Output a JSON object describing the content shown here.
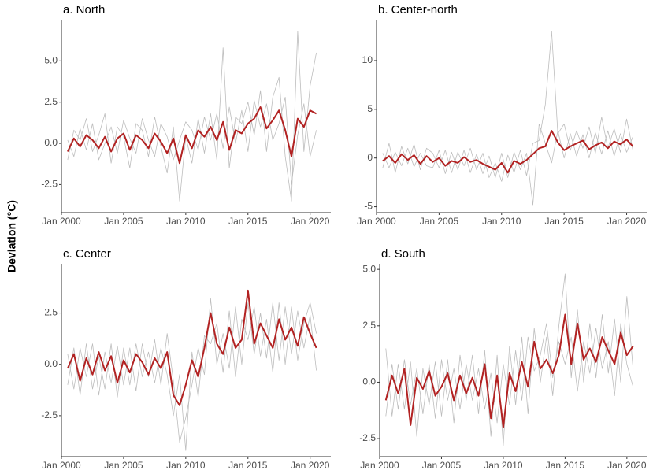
{
  "y_label": "Deviation (°C)",
  "chart_data": [
    {
      "type": "line",
      "title": "a. North",
      "x": [
        "2000-07",
        "2001-01",
        "2001-07",
        "2002-01",
        "2002-07",
        "2003-01",
        "2003-07",
        "2004-01",
        "2004-07",
        "2005-01",
        "2005-07",
        "2006-01",
        "2006-07",
        "2007-01",
        "2007-07",
        "2008-01",
        "2008-07",
        "2009-01",
        "2009-07",
        "2010-01",
        "2010-07",
        "2011-01",
        "2011-07",
        "2012-01",
        "2012-07",
        "2013-01",
        "2013-07",
        "2014-01",
        "2014-07",
        "2015-01",
        "2015-07",
        "2016-01",
        "2016-07",
        "2017-01",
        "2017-07",
        "2018-01",
        "2018-07",
        "2019-01",
        "2019-07",
        "2020-01",
        "2020-07"
      ],
      "series": [
        {
          "color": "#bdbdbd",
          "values": [
            -1.0,
            0.8,
            0.2,
            1.5,
            -0.5,
            0.5,
            1.8,
            -1.2,
            1.0,
            0.4,
            -1.5,
            1.2,
            0.8,
            -0.8,
            1.6,
            -0.2,
            -1.8,
            1.0,
            -3.5,
            0.4,
            -1.2,
            1.5,
            -0.6,
            1.8,
            -1.0,
            5.8,
            -1.5,
            1.6,
            1.2,
            2.5,
            0.5,
            3.2,
            -0.5,
            2.8,
            4.0,
            -0.8,
            -3.5,
            6.8,
            -0.5,
            3.5,
            5.5
          ]
        },
        {
          "color": "#bdbdbd",
          "values": [
            0.2,
            -0.8,
            0.9,
            -0.4,
            1.2,
            -1.0,
            0.0,
            1.0,
            -0.6,
            1.4,
            0.3,
            -0.6,
            1.5,
            0.2,
            -0.8,
            1.2,
            0.4,
            -1.0,
            0.2,
            1.3,
            0.8,
            -0.4,
            1.6,
            0.2,
            1.8,
            -0.3,
            2.2,
            0.0,
            2.0,
            -0.5,
            2.6,
            1.0,
            2.4,
            0.2,
            1.2,
            2.8,
            -2.5,
            0.5,
            2.4,
            -0.8,
            0.8
          ]
        },
        {
          "color": "#b22222",
          "values": [
            -0.5,
            0.3,
            -0.2,
            0.5,
            0.2,
            -0.3,
            0.4,
            -0.5,
            0.3,
            0.6,
            -0.4,
            0.5,
            0.2,
            -0.3,
            0.6,
            0.1,
            -0.6,
            0.3,
            -1.2,
            0.5,
            -0.3,
            0.8,
            0.4,
            1.0,
            0.2,
            1.3,
            -0.4,
            0.8,
            0.6,
            1.2,
            1.5,
            2.2,
            0.9,
            1.4,
            2.0,
            0.8,
            -0.8,
            1.5,
            1.0,
            2.0,
            1.8
          ]
        }
      ],
      "xlim": [
        "2000-01",
        "2021-09"
      ],
      "xticks": [
        {
          "value": "2000-01",
          "label": "Jan 2000"
        },
        {
          "value": "2005-01",
          "label": "Jan 2005"
        },
        {
          "value": "2010-01",
          "label": "Jan 2010"
        },
        {
          "value": "2015-01",
          "label": "Jan 2015"
        },
        {
          "value": "2020-01",
          "label": "Jan 2020"
        }
      ],
      "ylim": [
        -4.2,
        7.5
      ],
      "yticks": [
        -2.5,
        {
          "value": 0,
          "label": "0.0"
        },
        2.5,
        {
          "value": 5,
          "label": "5.0"
        }
      ]
    },
    {
      "type": "line",
      "title": "b. Center-north",
      "x": [
        "2000-07",
        "2001-01",
        "2001-07",
        "2002-01",
        "2002-07",
        "2003-01",
        "2003-07",
        "2004-01",
        "2004-07",
        "2005-01",
        "2005-07",
        "2006-01",
        "2006-07",
        "2007-01",
        "2007-07",
        "2008-01",
        "2008-07",
        "2009-01",
        "2009-07",
        "2010-01",
        "2010-07",
        "2011-01",
        "2011-07",
        "2012-01",
        "2012-07",
        "2013-01",
        "2013-07",
        "2014-01",
        "2014-07",
        "2015-01",
        "2015-07",
        "2016-01",
        "2016-07",
        "2017-01",
        "2017-07",
        "2018-01",
        "2018-07",
        "2019-01",
        "2019-07",
        "2020-01",
        "2020-07"
      ],
      "series": [
        {
          "color": "#bdbdbd",
          "values": [
            -1.0,
            1.5,
            -1.5,
            1.2,
            -0.6,
            1.4,
            -1.2,
            1.0,
            0.5,
            -1.0,
            0.8,
            -1.5,
            0.6,
            -0.8,
            1.0,
            -1.2,
            0.5,
            -2.0,
            -0.5,
            -2.4,
            0.3,
            -1.5,
            0.8,
            -1.8,
            1.5,
            1.8,
            5.5,
            13.0,
            2.5,
            3.5,
            0.8,
            2.8,
            1.0,
            3.2,
            0.5,
            4.2,
            1.0,
            3.0,
            0.6,
            4.0,
            0.8
          ]
        },
        {
          "color": "#bdbdbd",
          "values": [
            0.5,
            -1.0,
            0.6,
            -0.8,
            1.0,
            -0.9,
            0.5,
            -0.8,
            -1.0,
            0.8,
            -1.6,
            0.6,
            -1.2,
            0.8,
            -1.5,
            0.4,
            -1.6,
            0.2,
            -2.0,
            0.5,
            -2.0,
            0.6,
            -1.2,
            0.5,
            -4.8,
            3.5,
            1.5,
            -0.5,
            2.8,
            0.0,
            2.5,
            0.2,
            2.4,
            0.0,
            2.6,
            0.4,
            2.8,
            0.2,
            2.5,
            0.6,
            2.2
          ]
        },
        {
          "color": "#b22222",
          "values": [
            -0.3,
            0.2,
            -0.5,
            0.4,
            -0.2,
            0.3,
            -0.6,
            0.2,
            -0.4,
            0.0,
            -0.8,
            -0.3,
            -0.5,
            0.1,
            -0.4,
            -0.2,
            -0.6,
            -0.9,
            -1.2,
            -0.5,
            -1.5,
            -0.3,
            -0.6,
            -0.2,
            0.4,
            1.0,
            1.2,
            2.8,
            1.6,
            0.8,
            1.2,
            1.5,
            1.8,
            0.9,
            1.3,
            1.6,
            1.0,
            1.7,
            1.4,
            1.9,
            1.2
          ]
        }
      ],
      "xlim": [
        "2000-01",
        "2021-09"
      ],
      "xticks": [
        {
          "value": "2000-01",
          "label": "Jan 2000"
        },
        {
          "value": "2005-01",
          "label": "Jan 2005"
        },
        {
          "value": "2010-01",
          "label": "Jan 2010"
        },
        {
          "value": "2015-01",
          "label": "Jan 2015"
        },
        {
          "value": "2020-01",
          "label": "Jan 2020"
        }
      ],
      "ylim": [
        -5.6,
        14.2
      ],
      "yticks": [
        -5,
        0,
        5,
        10
      ]
    },
    {
      "type": "line",
      "title": "c. Center",
      "x": [
        "2000-07",
        "2001-01",
        "2001-07",
        "2002-01",
        "2002-07",
        "2003-01",
        "2003-07",
        "2004-01",
        "2004-07",
        "2005-01",
        "2005-07",
        "2006-01",
        "2006-07",
        "2007-01",
        "2007-07",
        "2008-01",
        "2008-07",
        "2009-01",
        "2009-07",
        "2010-01",
        "2010-07",
        "2011-01",
        "2011-07",
        "2012-01",
        "2012-07",
        "2013-01",
        "2013-07",
        "2014-01",
        "2014-07",
        "2015-01",
        "2015-07",
        "2016-01",
        "2016-07",
        "2017-01",
        "2017-07",
        "2018-01",
        "2018-07",
        "2019-01",
        "2019-07",
        "2020-01",
        "2020-07"
      ],
      "series": [
        {
          "color": "#bdbdbd",
          "values": [
            0.5,
            -1.2,
            0.8,
            -0.6,
            1.0,
            -1.5,
            0.6,
            -0.9,
            0.9,
            -1.0,
            0.8,
            -1.3,
            1.0,
            -0.6,
            1.2,
            -1.0,
            1.5,
            -0.8,
            -3.8,
            -2.6,
            -1.0,
            0.8,
            -0.5,
            3.2,
            0.0,
            1.5,
            -0.2,
            2.8,
            0.0,
            3.0,
            0.5,
            2.5,
            0.3,
            3.0,
            0.2,
            2.8,
            0.5,
            2.6,
            0.8,
            2.4,
            -0.3
          ]
        },
        {
          "color": "#bdbdbd",
          "values": [
            -1.0,
            0.8,
            -1.5,
            1.0,
            -1.2,
            0.4,
            -1.2,
            1.0,
            -1.6,
            0.8,
            -1.0,
            1.0,
            -0.6,
            0.6,
            -0.9,
            0.8,
            -0.5,
            -2.5,
            -0.5,
            -4.2,
            0.6,
            -1.6,
            1.4,
            1.0,
            2.0,
            -0.4,
            2.6,
            -0.6,
            2.2,
            1.2,
            2.8,
            0.4,
            2.2,
            -0.4,
            3.0,
            0.0,
            2.8,
            0.2,
            2.0,
            3.0,
            1.5
          ]
        },
        {
          "color": "#b22222",
          "values": [
            -0.2,
            0.5,
            -0.8,
            0.3,
            -0.5,
            0.6,
            -0.3,
            0.4,
            -0.9,
            0.2,
            -0.4,
            0.5,
            0.1,
            -0.5,
            0.3,
            -0.2,
            0.6,
            -1.5,
            -2.0,
            -1.0,
            0.2,
            -0.6,
            0.8,
            2.5,
            1.0,
            0.5,
            1.8,
            0.8,
            1.2,
            3.6,
            1.0,
            2.0,
            1.4,
            0.8,
            2.2,
            1.2,
            1.8,
            0.9,
            2.3,
            1.5,
            0.8
          ]
        }
      ],
      "xlim": [
        "2000-01",
        "2021-09"
      ],
      "xticks": [
        {
          "value": "2000-01",
          "label": "Jan 2000"
        },
        {
          "value": "2005-01",
          "label": "Jan 2005"
        },
        {
          "value": "2010-01",
          "label": "Jan 2010"
        },
        {
          "value": "2015-01",
          "label": "Jan 2015"
        },
        {
          "value": "2020-01",
          "label": "Jan 2020"
        }
      ],
      "ylim": [
        -4.5,
        4.9
      ],
      "yticks": [
        -2.5,
        {
          "value": 0,
          "label": "0.0"
        },
        2.5
      ]
    },
    {
      "type": "line",
      "title": "d. South",
      "x": [
        "2000-07",
        "2001-01",
        "2001-07",
        "2002-01",
        "2002-07",
        "2003-01",
        "2003-07",
        "2004-01",
        "2004-07",
        "2005-01",
        "2005-07",
        "2006-01",
        "2006-07",
        "2007-01",
        "2007-07",
        "2008-01",
        "2008-07",
        "2009-01",
        "2009-07",
        "2010-01",
        "2010-07",
        "2011-01",
        "2011-07",
        "2012-01",
        "2012-07",
        "2013-01",
        "2013-07",
        "2014-01",
        "2014-07",
        "2015-01",
        "2015-07",
        "2016-01",
        "2016-07",
        "2017-01",
        "2017-07",
        "2018-01",
        "2018-07",
        "2019-01",
        "2019-07",
        "2020-01",
        "2020-07"
      ],
      "series": [
        {
          "color": "#bdbdbd",
          "values": [
            1.5,
            -1.5,
            0.8,
            -1.2,
            0.9,
            -2.4,
            0.6,
            -1.0,
            0.9,
            -1.5,
            1.0,
            -1.8,
            1.2,
            -0.8,
            1.2,
            -1.4,
            1.4,
            -2.4,
            1.2,
            -2.8,
            1.6,
            -1.0,
            2.0,
            -1.4,
            2.4,
            0.0,
            2.0,
            -0.6,
            2.5,
            4.8,
            0.2,
            3.2,
            0.0,
            2.6,
            0.2,
            3.0,
            0.4,
            2.8,
            0.0,
            3.8,
            0.6
          ]
        },
        {
          "color": "#bdbdbd",
          "values": [
            -1.5,
            0.8,
            -1.2,
            1.0,
            -1.0,
            0.6,
            -1.4,
            0.8,
            -1.6,
            1.0,
            -0.8,
            0.6,
            -1.2,
            0.8,
            -0.8,
            0.6,
            -1.2,
            0.4,
            -1.8,
            0.8,
            -1.0,
            1.4,
            -0.8,
            2.0,
            0.5,
            1.2,
            2.6,
            0.2,
            1.8,
            0.8,
            2.0,
            -0.4,
            1.8,
            0.4,
            2.4,
            0.6,
            1.8,
            -0.6,
            2.6,
            0.8,
            -0.2
          ]
        },
        {
          "color": "#b22222",
          "values": [
            -0.8,
            0.3,
            -0.5,
            0.6,
            -1.9,
            0.2,
            -0.3,
            0.5,
            -0.6,
            -0.2,
            0.4,
            -0.8,
            0.3,
            -0.5,
            0.2,
            -0.6,
            0.8,
            -1.6,
            0.3,
            -2.0,
            0.4,
            -0.4,
            0.9,
            -0.2,
            1.8,
            0.6,
            1.0,
            0.4,
            1.2,
            3.0,
            0.8,
            2.6,
            1.0,
            1.5,
            0.9,
            2.0,
            1.4,
            0.8,
            2.2,
            1.2,
            1.6
          ]
        }
      ],
      "xlim": [
        "2000-01",
        "2021-09"
      ],
      "xticks": [
        {
          "value": "2000-01",
          "label": "Jan 2000"
        },
        {
          "value": "2005-01",
          "label": "Jan 2005"
        },
        {
          "value": "2010-01",
          "label": "Jan 2010"
        },
        {
          "value": "2015-01",
          "label": "Jan 2015"
        },
        {
          "value": "2020-01",
          "label": "Jan 2020"
        }
      ],
      "ylim": [
        -3.3,
        5.25
      ],
      "yticks": [
        -2.5,
        {
          "value": 0,
          "label": "0.0"
        },
        2.5,
        {
          "value": 5,
          "label": "5.0"
        }
      ]
    }
  ]
}
